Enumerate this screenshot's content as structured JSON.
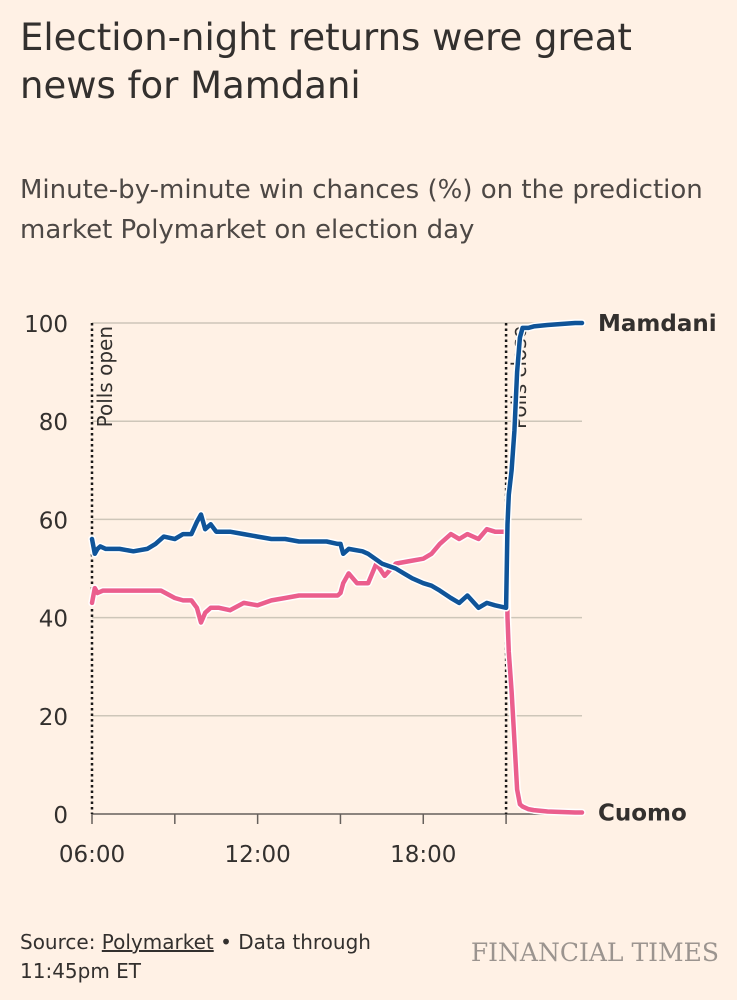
{
  "header": {
    "title": "Election-night returns were great news for Mamdani",
    "subtitle": "Minute-by-minute win chances (%) on the prediction market Polymarket on election day"
  },
  "footer": {
    "source_prefix": "Source: ",
    "source_link": "Polymarket",
    "source_suffix": " • Data through 11:45pm ET",
    "logo": "FINANCIAL TIMES"
  },
  "colors": {
    "background": "#FFF1E5",
    "mamdani": "#0F5499",
    "cuomo": "#EB5E8D",
    "grid": "#CEC6B9",
    "text": "#33302E"
  },
  "chart_data": {
    "type": "line",
    "xlabel": "",
    "ylabel": "",
    "x_unit": "hour of day",
    "xlim": [
      6,
      23.75
    ],
    "ylim": [
      0,
      100
    ],
    "y_ticks": [
      0,
      20,
      40,
      60,
      80,
      100
    ],
    "x_ticks": [
      6,
      9,
      12,
      15,
      18,
      21
    ],
    "x_tick_labels": [
      {
        "x": 6,
        "label": "06:00"
      },
      {
        "x": 12,
        "label": "12:00"
      },
      {
        "x": 18,
        "label": "18:00"
      }
    ],
    "grid": true,
    "annotations": [
      {
        "x": 6,
        "label": "Polls open"
      },
      {
        "x": 21,
        "label": "Polls close"
      }
    ],
    "series": [
      {
        "name": "Mamdani",
        "x": [
          6.0,
          6.1,
          6.2,
          6.3,
          6.5,
          7.0,
          7.5,
          8.0,
          8.3,
          8.6,
          9.0,
          9.3,
          9.6,
          9.8,
          9.95,
          10.1,
          10.3,
          10.5,
          11.0,
          11.5,
          12.0,
          12.5,
          13.0,
          13.5,
          14.0,
          14.5,
          14.9,
          15.0,
          15.1,
          15.3,
          15.8,
          16.0,
          16.5,
          17.0,
          17.3,
          17.6,
          18.0,
          18.3,
          18.6,
          19.0,
          19.3,
          19.6,
          20.0,
          20.3,
          20.6,
          21.0,
          21.05,
          21.1,
          21.2,
          21.3,
          21.4,
          21.5,
          21.6,
          21.8,
          22.0,
          22.5,
          23.0,
          23.5,
          23.75
        ],
        "values": [
          56,
          53,
          54,
          54.5,
          54,
          54,
          53.5,
          54,
          55,
          56.5,
          56,
          57,
          57,
          59.5,
          61,
          58,
          59,
          57.5,
          57.5,
          57,
          56.5,
          56,
          56,
          55.5,
          55.5,
          55.5,
          55,
          55,
          53,
          54,
          53.5,
          53,
          51,
          50,
          49,
          48,
          47,
          46.5,
          45.5,
          44,
          43,
          44.5,
          42,
          43,
          42.5,
          42,
          59,
          65,
          70,
          78,
          90,
          97,
          99,
          99,
          99.3,
          99.6,
          99.8,
          100,
          100
        ]
      },
      {
        "name": "Cuomo",
        "x": [
          6.0,
          6.1,
          6.2,
          6.4,
          6.6,
          7.0,
          7.5,
          8.0,
          8.5,
          9.0,
          9.3,
          9.6,
          9.8,
          9.95,
          10.1,
          10.3,
          10.6,
          11.0,
          11.5,
          12.0,
          12.5,
          13.0,
          13.5,
          14.0,
          14.5,
          14.9,
          15.0,
          15.1,
          15.3,
          15.6,
          16.0,
          16.3,
          16.6,
          17.0,
          17.5,
          18.0,
          18.3,
          18.6,
          19.0,
          19.3,
          19.6,
          20.0,
          20.3,
          20.6,
          21.0,
          21.05,
          21.1,
          21.2,
          21.3,
          21.4,
          21.5,
          21.6,
          21.8,
          22.0,
          22.5,
          23.0,
          23.5,
          23.75
        ],
        "values": [
          43,
          46,
          45,
          45.5,
          45.5,
          45.5,
          45.5,
          45.5,
          45.5,
          44,
          43.5,
          43.5,
          42,
          39,
          41,
          42,
          42,
          41.5,
          43,
          42.5,
          43.5,
          44,
          44.5,
          44.5,
          44.5,
          44.5,
          45,
          47,
          49,
          47,
          47,
          51,
          48.5,
          51,
          51.5,
          52,
          53,
          55,
          57,
          56,
          57,
          56,
          58,
          57.5,
          57.5,
          40,
          33,
          25,
          15,
          5,
          2,
          1.5,
          1,
          0.8,
          0.5,
          0.4,
          0.3,
          0.3
        ]
      }
    ]
  }
}
